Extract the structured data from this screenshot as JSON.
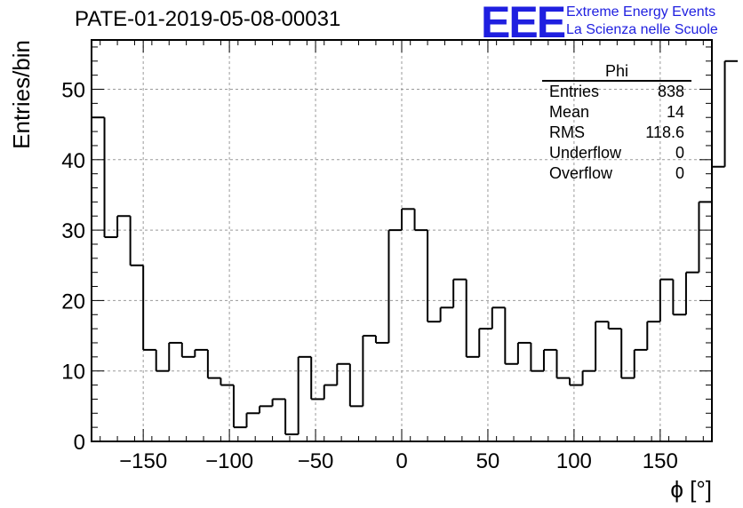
{
  "header": {
    "title": "PATE-01-2019-05-08-00031",
    "logo_mark": "EEE",
    "logo_line1": "Extreme Energy Events",
    "logo_line2": "La Scienza nelle Scuole",
    "logo_color": "#1f1fe0"
  },
  "stats": {
    "title": "Phi",
    "rows": [
      {
        "label": "Entries",
        "value": "838"
      },
      {
        "label": "Mean",
        "value": "14"
      },
      {
        "label": "RMS",
        "value": "118.6"
      },
      {
        "label": "Underflow",
        "value": "0"
      },
      {
        "label": "Overflow",
        "value": "0"
      }
    ]
  },
  "chart_data": {
    "type": "bar",
    "subtype": "step-histogram",
    "title": "PATE-01-2019-05-08-00031",
    "xlabel": "ϕ [°]",
    "ylabel": "Entries/bin",
    "xlim": [
      -180,
      180
    ],
    "ylim": [
      0,
      57
    ],
    "bin_width": 7.5,
    "bin_edges_start": -180,
    "values": [
      46,
      29,
      32,
      25,
      13,
      10,
      14,
      12,
      13,
      9,
      8,
      2,
      4,
      5,
      6,
      1,
      12,
      6,
      8,
      11,
      5,
      15,
      14,
      30,
      33,
      30,
      17,
      19,
      23,
      12,
      16,
      19,
      11,
      14,
      10,
      13,
      9,
      8,
      10,
      17,
      16,
      9,
      13,
      17,
      23,
      18,
      24,
      34,
      39,
      54
    ],
    "x_ticks": [
      -150,
      -100,
      -50,
      0,
      50,
      100,
      150
    ],
    "x_tick_labels": [
      "−150",
      "−100",
      "−50",
      "0",
      "50",
      "100",
      "150"
    ],
    "y_ticks": [
      0,
      10,
      20,
      30,
      40,
      50
    ],
    "y_tick_labels": [
      "0",
      "10",
      "20",
      "30",
      "40",
      "50"
    ],
    "grid": true,
    "line_color": "#000000"
  }
}
